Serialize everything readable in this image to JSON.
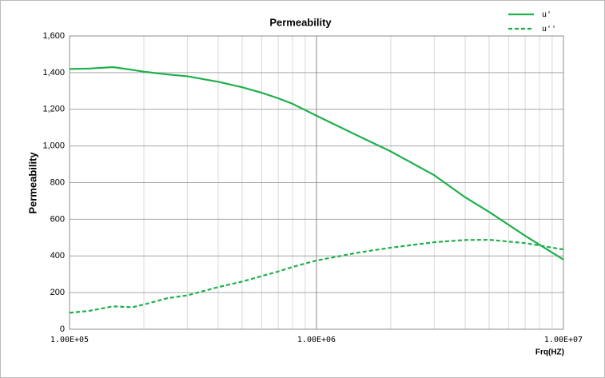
{
  "chart_data": {
    "type": "line",
    "title": "Permeability",
    "x_label": "Frq(HZ)",
    "y_label": "Permeability",
    "x": [
      100000,
      120000,
      150000,
      180000,
      200000,
      250000,
      300000,
      400000,
      500000,
      600000,
      700000,
      800000,
      1000000,
      1500000,
      2000000,
      3000000,
      4000000,
      5000000,
      7000000,
      10000000
    ],
    "series": [
      {
        "name": "u'",
        "color": "#1fb04c",
        "dash": false,
        "values": [
          1420,
          1422,
          1430,
          1415,
          1405,
          1390,
          1380,
          1350,
          1320,
          1290,
          1260,
          1230,
          1165,
          1050,
          970,
          840,
          720,
          640,
          510,
          380
        ]
      },
      {
        "name": "u''",
        "color": "#1fb04c",
        "dash": true,
        "values": [
          90,
          100,
          125,
          120,
          135,
          170,
          185,
          230,
          260,
          290,
          315,
          340,
          375,
          420,
          445,
          475,
          487,
          488,
          470,
          435
        ]
      }
    ],
    "xlog": true,
    "xlim": [
      100000,
      10000000
    ],
    "xticks": [
      {
        "value": 100000,
        "label": "1.00E+05"
      },
      {
        "value": 1000000,
        "label": "1.00E+06"
      },
      {
        "value": 10000000,
        "label": "1.00E+07"
      }
    ],
    "ylim": [
      0,
      1600
    ],
    "yticks": [
      0,
      200,
      400,
      600,
      800,
      {
        "value": 1000,
        "label": "1,000"
      },
      {
        "value": 1200,
        "label": "1,200"
      },
      {
        "value": 1400,
        "label": "1,400"
      },
      {
        "value": 1600,
        "label": "1,600"
      }
    ],
    "grid": true,
    "legend": "top-right"
  }
}
